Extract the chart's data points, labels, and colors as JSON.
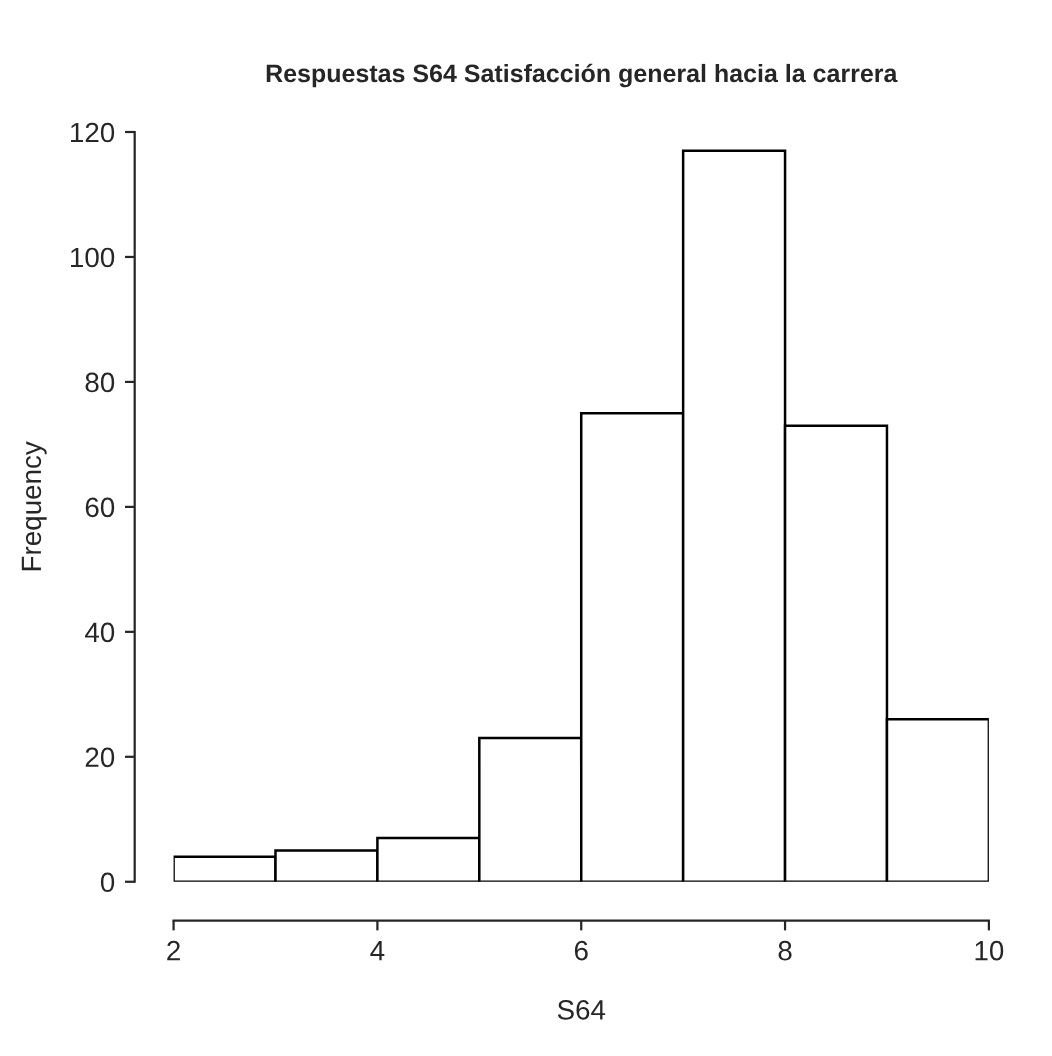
{
  "chart_data": {
    "type": "histogram",
    "title": "Respuestas S64 Satisfacción general hacia la carrera",
    "xlabel": "S64",
    "ylabel": "Frequency",
    "bins": [
      2,
      3,
      4,
      5,
      6,
      7,
      8,
      9,
      10
    ],
    "values": [
      4,
      5,
      7,
      23,
      75,
      117,
      73,
      26
    ],
    "color": "#ffffff",
    "xlim": [
      2,
      10
    ],
    "xticks": [
      2,
      4,
      6,
      8,
      10
    ],
    "ylim": [
      0,
      120
    ],
    "yticks": [
      0,
      20,
      40,
      60,
      80,
      100,
      120
    ],
    "grid": false,
    "legend": false
  }
}
